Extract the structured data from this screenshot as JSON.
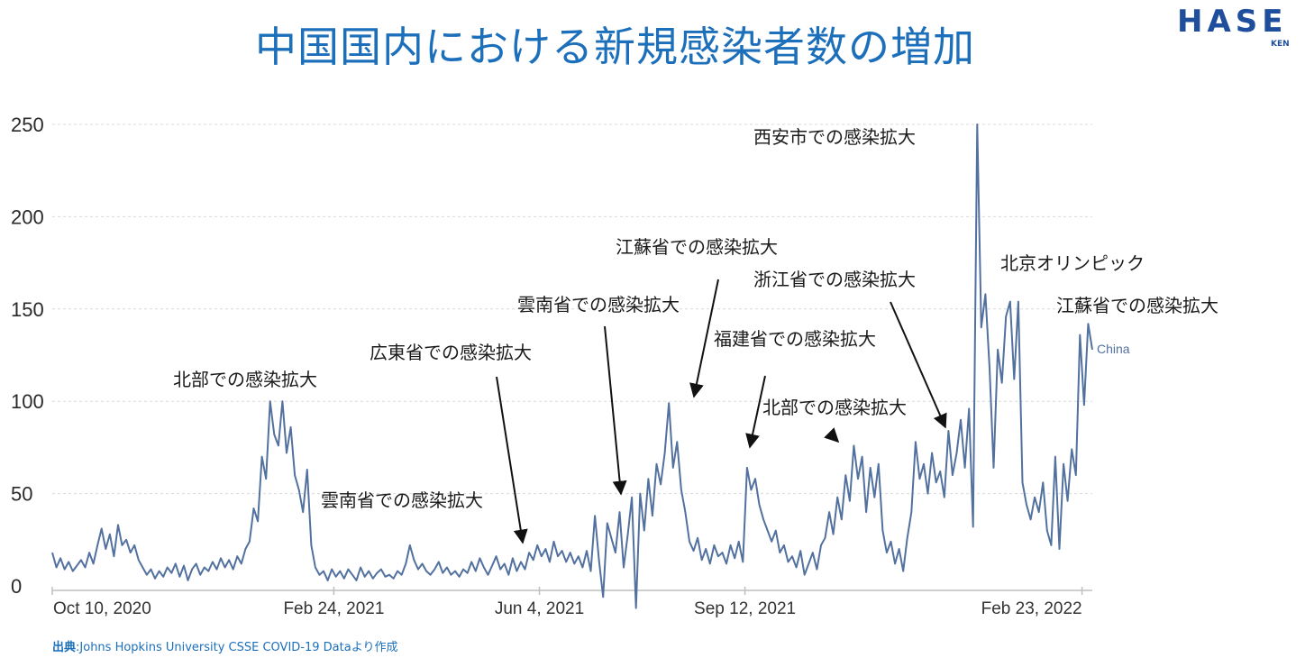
{
  "title": "中国国内における新規感染者数の増加",
  "logo": {
    "main": "HASE",
    "sub": "KEN"
  },
  "source": {
    "label": "出典",
    "text": "Johns Hopkins University CSSE COVID-19 Dataより作成"
  },
  "chart_data": {
    "type": "line",
    "grid": true,
    "ylim": [
      0,
      250
    ],
    "y_ticks": [
      "0",
      "50",
      "100",
      "150",
      "200",
      "250"
    ],
    "x_ticks": [
      {
        "label": "Oct 10, 2020",
        "date": "2020-10-10"
      },
      {
        "label": "Feb 24, 2021",
        "date": "2021-02-24"
      },
      {
        "label": "Jun 4, 2021",
        "date": "2021-06-04"
      },
      {
        "label": "Sep 12, 2021",
        "date": "2021-09-12"
      },
      {
        "label": "Feb 23, 2022",
        "date": "2022-02-23"
      }
    ],
    "series": [
      {
        "name": "China",
        "color": "#52719f",
        "points": [
          [
            "2020-10-10",
            18
          ],
          [
            "2020-10-12",
            10
          ],
          [
            "2020-10-14",
            15
          ],
          [
            "2020-10-16",
            9
          ],
          [
            "2020-10-18",
            13
          ],
          [
            "2020-10-20",
            8
          ],
          [
            "2020-10-22",
            11
          ],
          [
            "2020-10-24",
            14
          ],
          [
            "2020-10-26",
            10
          ],
          [
            "2020-10-28",
            18
          ],
          [
            "2020-10-30",
            12
          ],
          [
            "2020-11-01",
            22
          ],
          [
            "2020-11-03",
            31
          ],
          [
            "2020-11-05",
            20
          ],
          [
            "2020-11-07",
            28
          ],
          [
            "2020-11-09",
            16
          ],
          [
            "2020-11-11",
            33
          ],
          [
            "2020-11-13",
            22
          ],
          [
            "2020-11-15",
            25
          ],
          [
            "2020-11-17",
            18
          ],
          [
            "2020-11-19",
            22
          ],
          [
            "2020-11-21",
            14
          ],
          [
            "2020-11-23",
            10
          ],
          [
            "2020-11-25",
            6
          ],
          [
            "2020-11-27",
            9
          ],
          [
            "2020-11-29",
            4
          ],
          [
            "2020-12-01",
            8
          ],
          [
            "2020-12-03",
            5
          ],
          [
            "2020-12-05",
            10
          ],
          [
            "2020-12-07",
            7
          ],
          [
            "2020-12-09",
            12
          ],
          [
            "2020-12-11",
            5
          ],
          [
            "2020-12-13",
            11
          ],
          [
            "2020-12-15",
            3
          ],
          [
            "2020-12-17",
            9
          ],
          [
            "2020-12-19",
            12
          ],
          [
            "2020-12-21",
            6
          ],
          [
            "2020-12-23",
            10
          ],
          [
            "2020-12-25",
            8
          ],
          [
            "2020-12-27",
            13
          ],
          [
            "2020-12-29",
            9
          ],
          [
            "2020-12-31",
            15
          ],
          [
            "2021-01-02",
            10
          ],
          [
            "2021-01-04",
            14
          ],
          [
            "2021-01-06",
            9
          ],
          [
            "2021-01-08",
            16
          ],
          [
            "2021-01-10",
            12
          ],
          [
            "2021-01-12",
            20
          ],
          [
            "2021-01-14",
            24
          ],
          [
            "2021-01-16",
            42
          ],
          [
            "2021-01-18",
            35
          ],
          [
            "2021-01-20",
            70
          ],
          [
            "2021-01-22",
            58
          ],
          [
            "2021-01-24",
            100
          ],
          [
            "2021-01-26",
            82
          ],
          [
            "2021-01-28",
            76
          ],
          [
            "2021-01-30",
            100
          ],
          [
            "2021-02-01",
            72
          ],
          [
            "2021-02-03",
            86
          ],
          [
            "2021-02-05",
            60
          ],
          [
            "2021-02-07",
            52
          ],
          [
            "2021-02-09",
            40
          ],
          [
            "2021-02-11",
            63
          ],
          [
            "2021-02-13",
            22
          ],
          [
            "2021-02-15",
            10
          ],
          [
            "2021-02-17",
            6
          ],
          [
            "2021-02-19",
            8
          ],
          [
            "2021-02-21",
            3
          ],
          [
            "2021-02-23",
            9
          ],
          [
            "2021-02-25",
            5
          ],
          [
            "2021-02-27",
            8
          ],
          [
            "2021-03-01",
            4
          ],
          [
            "2021-03-03",
            9
          ],
          [
            "2021-03-05",
            6
          ],
          [
            "2021-03-07",
            3
          ],
          [
            "2021-03-09",
            10
          ],
          [
            "2021-03-11",
            5
          ],
          [
            "2021-03-13",
            8
          ],
          [
            "2021-03-15",
            4
          ],
          [
            "2021-03-17",
            7
          ],
          [
            "2021-03-19",
            9
          ],
          [
            "2021-03-21",
            5
          ],
          [
            "2021-03-23",
            6
          ],
          [
            "2021-03-25",
            4
          ],
          [
            "2021-03-27",
            8
          ],
          [
            "2021-03-29",
            6
          ],
          [
            "2021-03-31",
            12
          ],
          [
            "2021-04-02",
            22
          ],
          [
            "2021-04-04",
            14
          ],
          [
            "2021-04-06",
            9
          ],
          [
            "2021-04-08",
            12
          ],
          [
            "2021-04-10",
            8
          ],
          [
            "2021-04-12",
            6
          ],
          [
            "2021-04-14",
            9
          ],
          [
            "2021-04-16",
            13
          ],
          [
            "2021-04-18",
            7
          ],
          [
            "2021-04-20",
            10
          ],
          [
            "2021-04-22",
            6
          ],
          [
            "2021-04-24",
            8
          ],
          [
            "2021-04-26",
            5
          ],
          [
            "2021-04-28",
            9
          ],
          [
            "2021-04-30",
            7
          ],
          [
            "2021-05-02",
            13
          ],
          [
            "2021-05-04",
            8
          ],
          [
            "2021-05-06",
            15
          ],
          [
            "2021-05-08",
            10
          ],
          [
            "2021-05-10",
            6
          ],
          [
            "2021-05-12",
            11
          ],
          [
            "2021-05-14",
            16
          ],
          [
            "2021-05-16",
            9
          ],
          [
            "2021-05-18",
            12
          ],
          [
            "2021-05-20",
            6
          ],
          [
            "2021-05-22",
            15
          ],
          [
            "2021-05-24",
            8
          ],
          [
            "2021-05-26",
            13
          ],
          [
            "2021-05-28",
            9
          ],
          [
            "2021-05-30",
            18
          ],
          [
            "2021-06-01",
            14
          ],
          [
            "2021-06-03",
            22
          ],
          [
            "2021-06-05",
            16
          ],
          [
            "2021-06-07",
            20
          ],
          [
            "2021-06-09",
            13
          ],
          [
            "2021-06-11",
            24
          ],
          [
            "2021-06-13",
            16
          ],
          [
            "2021-06-15",
            19
          ],
          [
            "2021-06-17",
            13
          ],
          [
            "2021-06-19",
            18
          ],
          [
            "2021-06-21",
            12
          ],
          [
            "2021-06-23",
            16
          ],
          [
            "2021-06-25",
            10
          ],
          [
            "2021-06-27",
            19
          ],
          [
            "2021-06-29",
            8
          ],
          [
            "2021-07-01",
            38
          ],
          [
            "2021-07-03",
            14
          ],
          [
            "2021-07-05",
            -6
          ],
          [
            "2021-07-07",
            34
          ],
          [
            "2021-07-09",
            26
          ],
          [
            "2021-07-11",
            18
          ],
          [
            "2021-07-13",
            40
          ],
          [
            "2021-07-15",
            10
          ],
          [
            "2021-07-17",
            28
          ],
          [
            "2021-07-19",
            48
          ],
          [
            "2021-07-21",
            -12
          ],
          [
            "2021-07-23",
            50
          ],
          [
            "2021-07-25",
            30
          ],
          [
            "2021-07-27",
            58
          ],
          [
            "2021-07-29",
            38
          ],
          [
            "2021-07-31",
            66
          ],
          [
            "2021-08-02",
            55
          ],
          [
            "2021-08-04",
            72
          ],
          [
            "2021-08-06",
            99
          ],
          [
            "2021-08-08",
            64
          ],
          [
            "2021-08-10",
            78
          ],
          [
            "2021-08-12",
            52
          ],
          [
            "2021-08-14",
            40
          ],
          [
            "2021-08-16",
            24
          ],
          [
            "2021-08-18",
            19
          ],
          [
            "2021-08-20",
            26
          ],
          [
            "2021-08-22",
            14
          ],
          [
            "2021-08-24",
            20
          ],
          [
            "2021-08-26",
            12
          ],
          [
            "2021-08-28",
            22
          ],
          [
            "2021-08-30",
            16
          ],
          [
            "2021-09-01",
            18
          ],
          [
            "2021-09-03",
            12
          ],
          [
            "2021-09-05",
            22
          ],
          [
            "2021-09-07",
            15
          ],
          [
            "2021-09-09",
            24
          ],
          [
            "2021-09-11",
            13
          ],
          [
            "2021-09-13",
            64
          ],
          [
            "2021-09-15",
            52
          ],
          [
            "2021-09-17",
            58
          ],
          [
            "2021-09-19",
            44
          ],
          [
            "2021-09-21",
            36
          ],
          [
            "2021-09-23",
            30
          ],
          [
            "2021-09-25",
            24
          ],
          [
            "2021-09-27",
            30
          ],
          [
            "2021-09-29",
            18
          ],
          [
            "2021-10-01",
            22
          ],
          [
            "2021-10-03",
            13
          ],
          [
            "2021-10-05",
            16
          ],
          [
            "2021-10-07",
            10
          ],
          [
            "2021-10-09",
            19
          ],
          [
            "2021-10-11",
            6
          ],
          [
            "2021-10-13",
            12
          ],
          [
            "2021-10-15",
            18
          ],
          [
            "2021-10-17",
            9
          ],
          [
            "2021-10-19",
            22
          ],
          [
            "2021-10-21",
            26
          ],
          [
            "2021-10-23",
            40
          ],
          [
            "2021-10-25",
            28
          ],
          [
            "2021-10-27",
            48
          ],
          [
            "2021-10-29",
            36
          ],
          [
            "2021-10-31",
            60
          ],
          [
            "2021-11-02",
            46
          ],
          [
            "2021-11-04",
            76
          ],
          [
            "2021-11-06",
            58
          ],
          [
            "2021-11-08",
            70
          ],
          [
            "2021-11-10",
            40
          ],
          [
            "2021-11-12",
            64
          ],
          [
            "2021-11-14",
            48
          ],
          [
            "2021-11-16",
            66
          ],
          [
            "2021-11-18",
            30
          ],
          [
            "2021-11-20",
            18
          ],
          [
            "2021-11-22",
            24
          ],
          [
            "2021-11-24",
            12
          ],
          [
            "2021-11-26",
            20
          ],
          [
            "2021-11-28",
            8
          ],
          [
            "2021-11-30",
            26
          ],
          [
            "2021-12-02",
            40
          ],
          [
            "2021-12-04",
            78
          ],
          [
            "2021-12-06",
            58
          ],
          [
            "2021-12-08",
            66
          ],
          [
            "2021-12-10",
            50
          ],
          [
            "2021-12-12",
            72
          ],
          [
            "2021-12-14",
            56
          ],
          [
            "2021-12-16",
            62
          ],
          [
            "2021-12-18",
            48
          ],
          [
            "2021-12-20",
            84
          ],
          [
            "2021-12-22",
            60
          ],
          [
            "2021-12-24",
            72
          ],
          [
            "2021-12-26",
            90
          ],
          [
            "2021-12-28",
            64
          ],
          [
            "2021-12-30",
            96
          ],
          [
            "2022-01-01",
            32
          ],
          [
            "2022-01-03",
            250
          ],
          [
            "2022-01-05",
            140
          ],
          [
            "2022-01-07",
            158
          ],
          [
            "2022-01-09",
            118
          ],
          [
            "2022-01-11",
            64
          ],
          [
            "2022-01-13",
            128
          ],
          [
            "2022-01-15",
            110
          ],
          [
            "2022-01-17",
            146
          ],
          [
            "2022-01-19",
            154
          ],
          [
            "2022-01-21",
            112
          ],
          [
            "2022-01-23",
            154
          ],
          [
            "2022-01-25",
            56
          ],
          [
            "2022-01-27",
            44
          ],
          [
            "2022-01-29",
            36
          ],
          [
            "2022-01-31",
            48
          ],
          [
            "2022-02-02",
            40
          ],
          [
            "2022-02-04",
            56
          ],
          [
            "2022-02-06",
            30
          ],
          [
            "2022-02-08",
            22
          ],
          [
            "2022-02-10",
            70
          ],
          [
            "2022-02-12",
            20
          ],
          [
            "2022-02-14",
            66
          ],
          [
            "2022-02-16",
            46
          ],
          [
            "2022-02-18",
            74
          ],
          [
            "2022-02-20",
            60
          ],
          [
            "2022-02-22",
            136
          ],
          [
            "2022-02-24",
            98
          ],
          [
            "2022-02-26",
            142
          ],
          [
            "2022-02-28",
            128
          ]
        ]
      }
    ],
    "annotations": [
      {
        "text": "北部での感染拡大"
      },
      {
        "text": "雲南省での感染拡大"
      },
      {
        "text": "広東省での感染拡大"
      },
      {
        "text": "雲南省での感染拡大"
      },
      {
        "text": "江蘇省での感染拡大"
      },
      {
        "text": "福建省での感染拡大"
      },
      {
        "text": "北部での感染拡大"
      },
      {
        "text": "浙江省での感染拡大"
      },
      {
        "text": "西安市での感染拡大"
      },
      {
        "text": "北京オリンピック"
      },
      {
        "text": "江蘇省での感染拡大"
      }
    ]
  }
}
